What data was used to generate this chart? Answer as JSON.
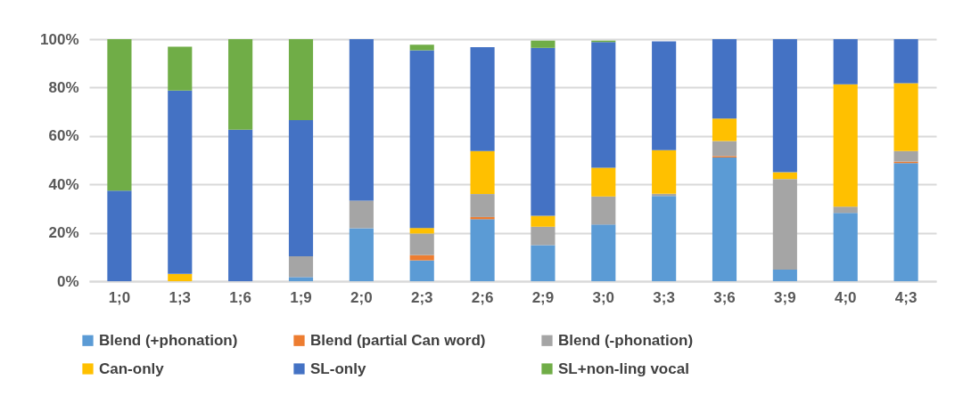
{
  "chart_data": {
    "type": "bar",
    "stacked": true,
    "categories": [
      "1;0",
      "1;3",
      "1;6",
      "1;9",
      "2;0",
      "2;3",
      "2;6",
      "2;9",
      "3;0",
      "3;3",
      "3;6",
      "3;9",
      "4;0",
      "4;3"
    ],
    "series": [
      {
        "name": "Blend (+phonation)",
        "color": "#5b9bd5",
        "values": [
          0,
          0,
          0,
          1.7,
          21.9,
          8.6,
          25.6,
          14.9,
          23.4,
          35.2,
          51.1,
          4.8,
          28.2,
          48.8
        ]
      },
      {
        "name": "Blend (partial Can word)",
        "color": "#ed7d31",
        "values": [
          0,
          0,
          0,
          0,
          0,
          2.2,
          0.9,
          0,
          0,
          0,
          0.6,
          0,
          0,
          0.6
        ]
      },
      {
        "name": "Blend (-phonation)",
        "color": "#a5a5a5",
        "values": [
          0,
          0,
          0,
          8.6,
          11.4,
          8.9,
          9.5,
          7.6,
          11.6,
          0.9,
          6.2,
          37.4,
          2.6,
          4.4
        ]
      },
      {
        "name": "Can-only",
        "color": "#ffc000",
        "values": [
          0,
          3.0,
          0,
          0,
          0,
          2.3,
          17.8,
          4.5,
          11.9,
          18.0,
          9.3,
          2.8,
          50.5,
          28.0
        ]
      },
      {
        "name": "SL-only",
        "color": "#4472c4",
        "values": [
          37.4,
          75.8,
          62.6,
          56.2,
          66.7,
          73.4,
          42.9,
          69.4,
          51.9,
          45.0,
          32.8,
          55.0,
          18.7,
          18.2
        ]
      },
      {
        "name": "SL+non-ling vocal",
        "color": "#70ad47",
        "values": [
          62.6,
          18.1,
          37.4,
          33.5,
          0,
          2.3,
          0,
          3.0,
          0.6,
          0,
          0,
          0,
          0,
          0
        ]
      }
    ],
    "ylim": [
      0,
      100
    ],
    "yticks": [
      {
        "value": 0,
        "label": "0%"
      },
      {
        "value": 20,
        "label": "20%"
      },
      {
        "value": 40,
        "label": "40%"
      },
      {
        "value": 60,
        "label": "60%"
      },
      {
        "value": 80,
        "label": "80%"
      },
      {
        "value": 100,
        "label": "100%"
      }
    ],
    "grid": "y",
    "legend": "bottom"
  }
}
